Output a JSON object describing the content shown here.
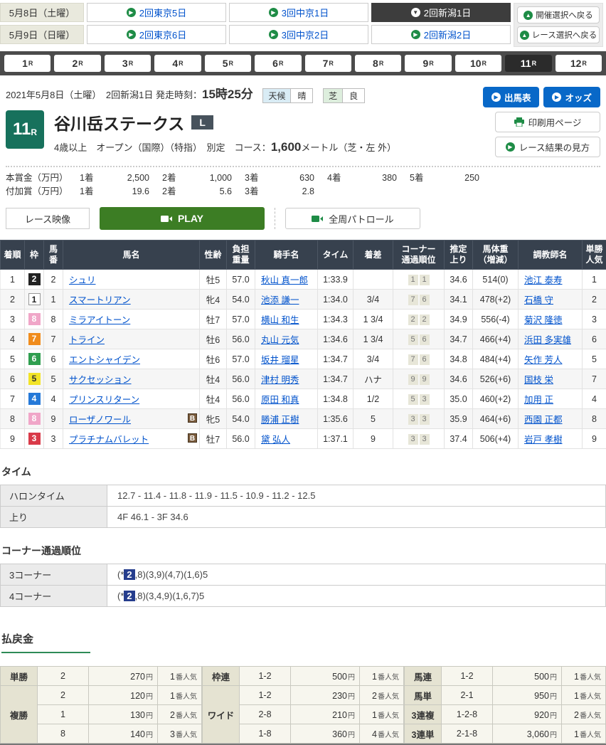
{
  "nav": {
    "rows": [
      {
        "date": "5月8日（土曜）",
        "links": [
          {
            "label": "2回東京5日",
            "active": false
          },
          {
            "label": "3回中京1日",
            "active": false
          },
          {
            "label": "2回新潟1日",
            "active": true
          }
        ]
      },
      {
        "date": "5月9日（日曜）",
        "links": [
          {
            "label": "2回東京6日",
            "active": false
          },
          {
            "label": "3回中京2日",
            "active": false
          },
          {
            "label": "2回新潟2日",
            "active": false
          }
        ]
      }
    ],
    "back_buttons": {
      "meeting": "開催選択へ戻る",
      "race": "レース選択へ戻る"
    },
    "icons": {
      "chevron_right": "▶",
      "chevron_down": "▼",
      "chevron_up": "▲"
    }
  },
  "race_tabs": {
    "labels": [
      "1",
      "2",
      "3",
      "4",
      "5",
      "6",
      "7",
      "8",
      "9",
      "10",
      "11",
      "12"
    ],
    "suffix": "R",
    "active": "11"
  },
  "race_header": {
    "date_line": "2021年5月8日（土曜）　2回新潟1日",
    "start_label": "発走時刻：",
    "start_time": "15時25分",
    "weather_label": "天候",
    "weather_value": "晴",
    "turf_label": "芝",
    "turf_value": "良",
    "race_number": "11",
    "race_number_suffix": "R",
    "race_name": "谷川岳ステークス",
    "grade_badge": "L",
    "conditions": "4歳以上　オープン（国際）（特指）　別定　",
    "course_label": "コース：",
    "course_distance": "1,600",
    "course_unit": "メートル（芝・左 外）",
    "buttons": {
      "entries": "出馬表",
      "odds": "オッズ",
      "print": "印刷用ページ",
      "guide": "レース結果の見方"
    }
  },
  "prize": {
    "main_label": "本賞金（万円）",
    "main": [
      [
        "1着",
        "2,500"
      ],
      [
        "2着",
        "1,000"
      ],
      [
        "3着",
        "630"
      ],
      [
        "4着",
        "380"
      ],
      [
        "5着",
        "250"
      ]
    ],
    "added_label": "付加賞（万円）",
    "added": [
      [
        "1着",
        "19.6"
      ],
      [
        "2着",
        "5.6"
      ],
      [
        "3着",
        "2.8"
      ]
    ]
  },
  "video": {
    "label": "レース映像",
    "play": "PLAY",
    "patrol": "全周パトロール"
  },
  "results": {
    "headers": [
      "着順",
      "枠",
      "馬\n番",
      "馬名",
      "性齢",
      "負担\n重量",
      "騎手名",
      "タイム",
      "着差",
      "コーナー\n通過順位",
      "推定\n上り",
      "馬体重\n（増減）",
      "調教師名",
      "単勝\n人気"
    ],
    "b_badge_label": "B",
    "rows": [
      {
        "pos": "1",
        "frame": "2",
        "num": "2",
        "horse": "シュリ",
        "b": false,
        "sex_age": "牡5",
        "weight": "57.0",
        "jockey": "秋山 真一郎",
        "time": "1:33.9",
        "margin": "",
        "corners": [
          "1",
          "1"
        ],
        "last3f": "34.6",
        "horse_weight": "514(0)",
        "trainer": "池江 泰寿",
        "fav": "1"
      },
      {
        "pos": "2",
        "frame": "1",
        "num": "1",
        "horse": "スマートリアン",
        "b": false,
        "sex_age": "牝4",
        "weight": "54.0",
        "jockey": "池添 謙一",
        "time": "1:34.0",
        "margin": "3/4",
        "corners": [
          "7",
          "6"
        ],
        "last3f": "34.1",
        "horse_weight": "478(+2)",
        "trainer": "石橋 守",
        "fav": "2"
      },
      {
        "pos": "3",
        "frame": "8",
        "num": "8",
        "horse": "ミラアイトーン",
        "b": false,
        "sex_age": "牡7",
        "weight": "57.0",
        "jockey": "横山 和生",
        "time": "1:34.3",
        "margin": "1 3/4",
        "corners": [
          "2",
          "2"
        ],
        "last3f": "34.9",
        "horse_weight": "556(-4)",
        "trainer": "菊沢 隆徳",
        "fav": "3"
      },
      {
        "pos": "4",
        "frame": "7",
        "num": "7",
        "horse": "トライン",
        "b": false,
        "sex_age": "牡6",
        "weight": "56.0",
        "jockey": "丸山 元気",
        "time": "1:34.6",
        "margin": "1 3/4",
        "corners": [
          "5",
          "6"
        ],
        "last3f": "34.7",
        "horse_weight": "466(+4)",
        "trainer": "浜田 多実雄",
        "fav": "6"
      },
      {
        "pos": "5",
        "frame": "6",
        "num": "6",
        "horse": "エントシャイデン",
        "b": false,
        "sex_age": "牡6",
        "weight": "57.0",
        "jockey": "坂井 瑠星",
        "time": "1:34.7",
        "margin": "3/4",
        "corners": [
          "7",
          "6"
        ],
        "last3f": "34.8",
        "horse_weight": "484(+4)",
        "trainer": "矢作 芳人",
        "fav": "5"
      },
      {
        "pos": "6",
        "frame": "5",
        "num": "5",
        "horse": "サクセッション",
        "b": false,
        "sex_age": "牡4",
        "weight": "56.0",
        "jockey": "津村 明秀",
        "time": "1:34.7",
        "margin": "ハナ",
        "corners": [
          "9",
          "9"
        ],
        "last3f": "34.6",
        "horse_weight": "526(+6)",
        "trainer": "国枝 栄",
        "fav": "7"
      },
      {
        "pos": "7",
        "frame": "4",
        "num": "4",
        "horse": "プリンスリターン",
        "b": false,
        "sex_age": "牡4",
        "weight": "56.0",
        "jockey": "原田 和真",
        "time": "1:34.8",
        "margin": "1/2",
        "corners": [
          "5",
          "3"
        ],
        "last3f": "35.0",
        "horse_weight": "460(+2)",
        "trainer": "加用 正",
        "fav": "4"
      },
      {
        "pos": "8",
        "frame": "8",
        "num": "9",
        "horse": "ローザノワール",
        "b": true,
        "sex_age": "牝5",
        "weight": "54.0",
        "jockey": "勝浦 正樹",
        "time": "1:35.6",
        "margin": "5",
        "corners": [
          "3",
          "3"
        ],
        "last3f": "35.9",
        "horse_weight": "464(+6)",
        "trainer": "西園 正都",
        "fav": "8"
      },
      {
        "pos": "9",
        "frame": "3",
        "num": "3",
        "horse": "プラチナムバレット",
        "b": true,
        "sex_age": "牡7",
        "weight": "56.0",
        "jockey": "黛 弘人",
        "time": "1:37.1",
        "margin": "9",
        "corners": [
          "3",
          "3"
        ],
        "last3f": "37.4",
        "horse_weight": "506(+4)",
        "trainer": "岩戸 孝樹",
        "fav": "9"
      }
    ]
  },
  "time_section": {
    "title": "タイム",
    "rows": [
      {
        "label": "ハロンタイム",
        "value": "12.7 - 11.4 - 11.8 - 11.9 - 11.5 - 10.9 - 11.2 - 12.5"
      },
      {
        "label": "上り",
        "value": "4F 46.1 - 3F 34.6"
      }
    ]
  },
  "corner_section": {
    "title": "コーナー通過順位",
    "rows": [
      {
        "label": "3コーナー",
        "prefix": "(*",
        "highlight": "2",
        "suffix": ",8)(3,9)(4,7)(1,6)5"
      },
      {
        "label": "4コーナー",
        "prefix": "(*",
        "highlight": "2",
        "suffix": ",8)(3,4,9)(1,6,7)5"
      }
    ]
  },
  "payout": {
    "title": "払戻金",
    "yen_suffix": "円",
    "fav_suffix": "番人気",
    "groups": [
      {
        "blocks": [
          {
            "label": "単勝",
            "rows": [
              {
                "combo": "2",
                "amount": "270",
                "fav": "1"
              }
            ]
          },
          {
            "label": "複勝",
            "rows": [
              {
                "combo": "2",
                "amount": "120",
                "fav": "1"
              },
              {
                "combo": "1",
                "amount": "130",
                "fav": "2"
              },
              {
                "combo": "8",
                "amount": "140",
                "fav": "3"
              }
            ]
          }
        ]
      },
      {
        "blocks": [
          {
            "label": "枠連",
            "rows": [
              {
                "combo": "1-2",
                "amount": "500",
                "fav": "1"
              }
            ]
          },
          {
            "label": "ワイド",
            "rows": [
              {
                "combo": "1-2",
                "amount": "230",
                "fav": "2"
              },
              {
                "combo": "2-8",
                "amount": "210",
                "fav": "1"
              },
              {
                "combo": "1-8",
                "amount": "360",
                "fav": "4"
              }
            ]
          }
        ]
      },
      {
        "blocks": [
          {
            "label": "馬連",
            "rows": [
              {
                "combo": "1-2",
                "amount": "500",
                "fav": "1"
              }
            ]
          },
          {
            "label": "馬単",
            "rows": [
              {
                "combo": "2-1",
                "amount": "950",
                "fav": "1"
              }
            ]
          },
          {
            "label": "3連複",
            "rows": [
              {
                "combo": "1-2-8",
                "amount": "920",
                "fav": "2"
              }
            ]
          },
          {
            "label": "3連単",
            "rows": [
              {
                "combo": "2-1-8",
                "amount": "3,060",
                "fav": "1"
              }
            ]
          }
        ]
      }
    ]
  }
}
